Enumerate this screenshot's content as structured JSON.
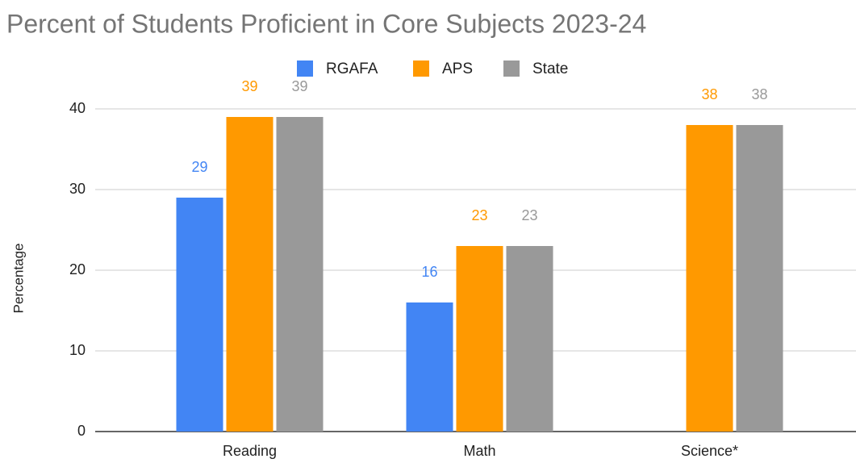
{
  "chart_data": {
    "type": "bar",
    "title": "Percent of Students Proficient in Core Subjects 2023-24",
    "y_label": "Percentage",
    "categories": [
      "Reading",
      "Math",
      "Science*"
    ],
    "series": [
      {
        "name": "RGAFA",
        "color": "#4285f4",
        "values": [
          29,
          16,
          null
        ]
      },
      {
        "name": "APS",
        "color": "#ff9900",
        "values": [
          39,
          23,
          38
        ]
      },
      {
        "name": "State",
        "color": "#999999",
        "values": [
          39,
          23,
          38
        ]
      }
    ],
    "ylim": [
      0,
      40
    ],
    "yticks": [
      0,
      10,
      20,
      30,
      40
    ],
    "grid": true,
    "legend": "top"
  }
}
